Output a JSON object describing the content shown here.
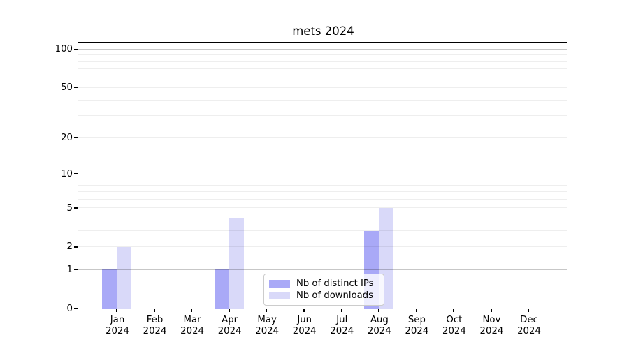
{
  "chart_data": {
    "type": "bar",
    "title": "mets 2024",
    "x_axis": {
      "months": [
        "Jan",
        "Feb",
        "Mar",
        "Apr",
        "May",
        "Jun",
        "Jul",
        "Aug",
        "Sep",
        "Oct",
        "Nov",
        "Dec"
      ],
      "year_line": "2024"
    },
    "y_axis": {
      "scale": "log10(1+value)",
      "ylim": [
        0,
        112
      ],
      "tick_values": [
        0,
        1,
        2,
        5,
        10,
        20,
        50,
        100
      ],
      "major_gridlines": [
        1,
        10,
        100
      ],
      "minor_gridlines": [
        2,
        3,
        4,
        5,
        6,
        7,
        8,
        9,
        20,
        30,
        40,
        50,
        60,
        70,
        80,
        90
      ]
    },
    "series": [
      {
        "name": "Nb of distinct IPs",
        "color": "#a9a9f7",
        "values": [
          1,
          0,
          0,
          1,
          0,
          0,
          0,
          3,
          0,
          0,
          0,
          0
        ]
      },
      {
        "name": "Nb of downloads",
        "color": "#d9d9f9",
        "values": [
          2,
          0,
          0,
          4,
          0,
          0,
          0,
          5,
          0,
          0,
          0,
          0
        ]
      }
    ],
    "legend": {
      "position": "lower center",
      "items": [
        "Nb of distinct IPs",
        "Nb of downloads"
      ]
    },
    "colors": {
      "background": "#ffffff",
      "text": "#000000",
      "spine": "#000000",
      "major_grid": "rgba(0,0,0,0.22)",
      "minor_grid": "rgba(0,0,0,0.065)",
      "legend_border": "#cccccc",
      "legend_background": "rgba(255,255,255,0.8)"
    }
  }
}
